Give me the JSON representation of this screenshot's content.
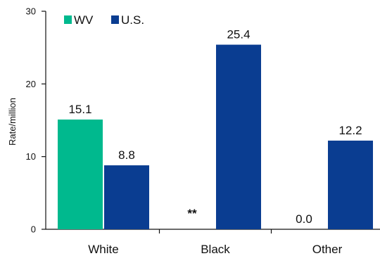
{
  "chart_data": {
    "type": "bar",
    "categories": [
      "White",
      "Black",
      "Other"
    ],
    "series": [
      {
        "name": "WV",
        "values": [
          15.1,
          null,
          0.0
        ],
        "labels": [
          "15.1",
          "**",
          "0.0"
        ],
        "color": "#00b98e"
      },
      {
        "name": "U.S.",
        "values": [
          8.8,
          25.4,
          12.2
        ],
        "labels": [
          "8.8",
          "25.4",
          "12.2"
        ],
        "color": "#0a3d91"
      }
    ],
    "title": "",
    "xlabel": "",
    "ylabel": "Rate/million",
    "ylim": [
      0,
      30
    ],
    "yticks": [
      0,
      10,
      20,
      30
    ],
    "grid": false,
    "legend_position": "top-left"
  }
}
